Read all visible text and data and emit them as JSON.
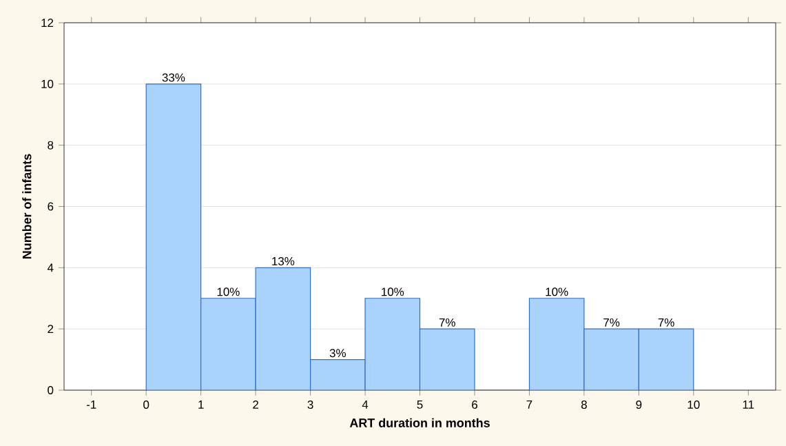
{
  "chart_data": {
    "type": "histogram",
    "xlabel": "ART duration in months",
    "ylabel": "Number of infants",
    "bins": [
      0,
      1,
      2,
      3,
      4,
      5,
      6,
      7,
      8,
      9,
      10
    ],
    "values": [
      10,
      3,
      4,
      1,
      3,
      2,
      0,
      3,
      2,
      2
    ],
    "annotations": [
      {
        "text": "33%",
        "x": 0.5,
        "y": 10
      },
      {
        "text": "10%",
        "x": 1.5,
        "y": 3
      },
      {
        "text": "13%",
        "x": 2.5,
        "y": 4
      },
      {
        "text": "3%",
        "x": 3.5,
        "y": 1
      },
      {
        "text": "10%",
        "x": 4.5,
        "y": 3
      },
      {
        "text": "7%",
        "x": 5.5,
        "y": 2
      },
      {
        "text": "10%",
        "x": 7.5,
        "y": 3
      },
      {
        "text": "7%",
        "x": 8.5,
        "y": 2
      },
      {
        "text": "7%",
        "x": 9.5,
        "y": 2
      }
    ],
    "color": "#a9d3fb",
    "xlim": [
      -1.5,
      11.5
    ],
    "xticks": [
      -1,
      0,
      1,
      2,
      3,
      4,
      5,
      6,
      7,
      8,
      9,
      10,
      11
    ],
    "ylim": [
      0,
      12
    ],
    "yticks": [
      0,
      2,
      4,
      6,
      8,
      10,
      12
    ],
    "grid": "y"
  }
}
